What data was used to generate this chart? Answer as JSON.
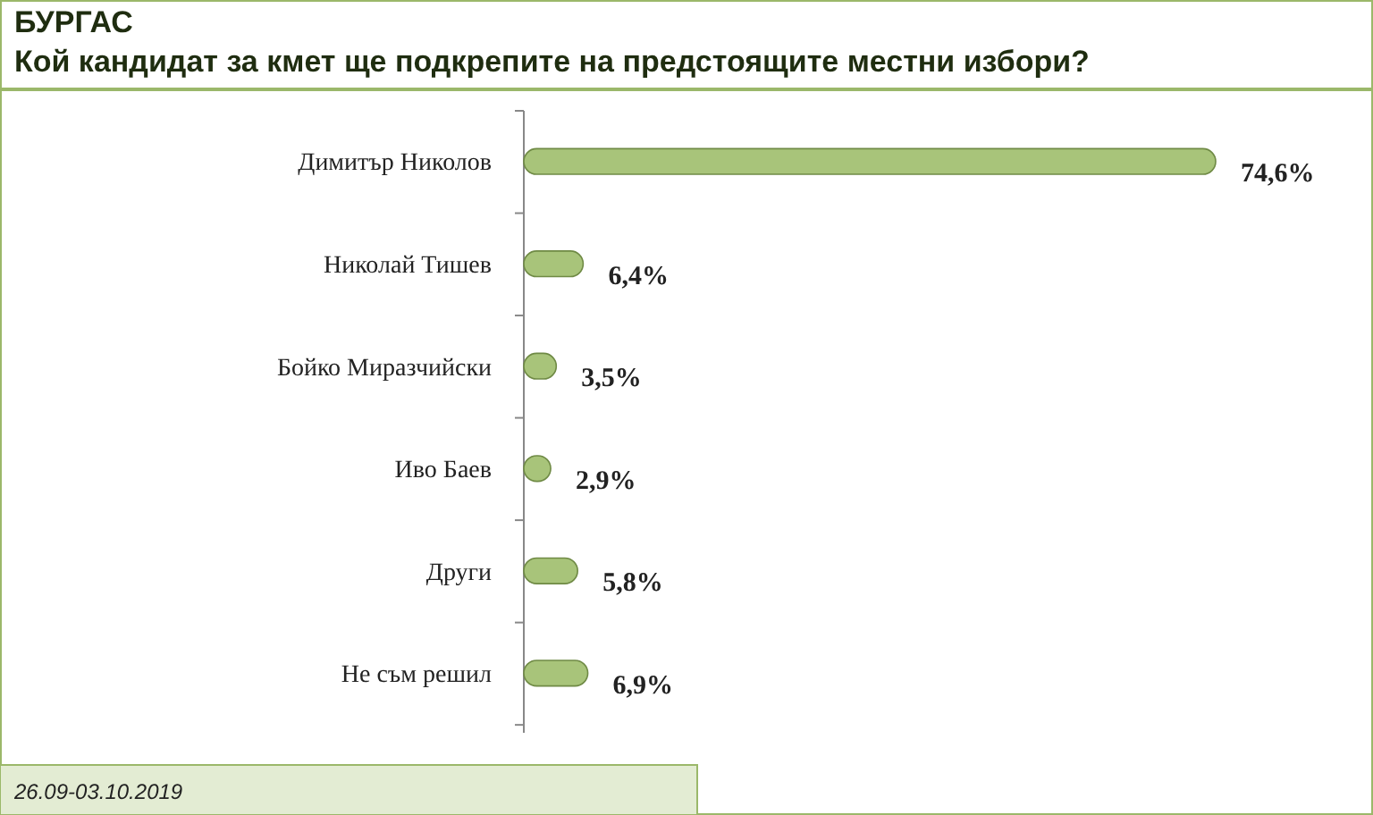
{
  "chart_data": {
    "type": "bar",
    "orientation": "horizontal",
    "title": "БУРГАС",
    "subtitle": "Кой кандидат за кмет ще подкрепите на предстоящите местни избори?",
    "categories": [
      "Димитър Николов",
      "Николай Тишев",
      "Бойко Миразчийски",
      "Иво Баев",
      "Други",
      "Не съм решил"
    ],
    "values": [
      74.6,
      6.4,
      3.5,
      2.9,
      5.8,
      6.9
    ],
    "value_labels": [
      "74,6%",
      "6,4%",
      "3,5%",
      "2,9%",
      "5,8%",
      "6,9%"
    ],
    "color": "#a8c47a",
    "annotations": [
      "26.09-03.10.2019"
    ]
  }
}
